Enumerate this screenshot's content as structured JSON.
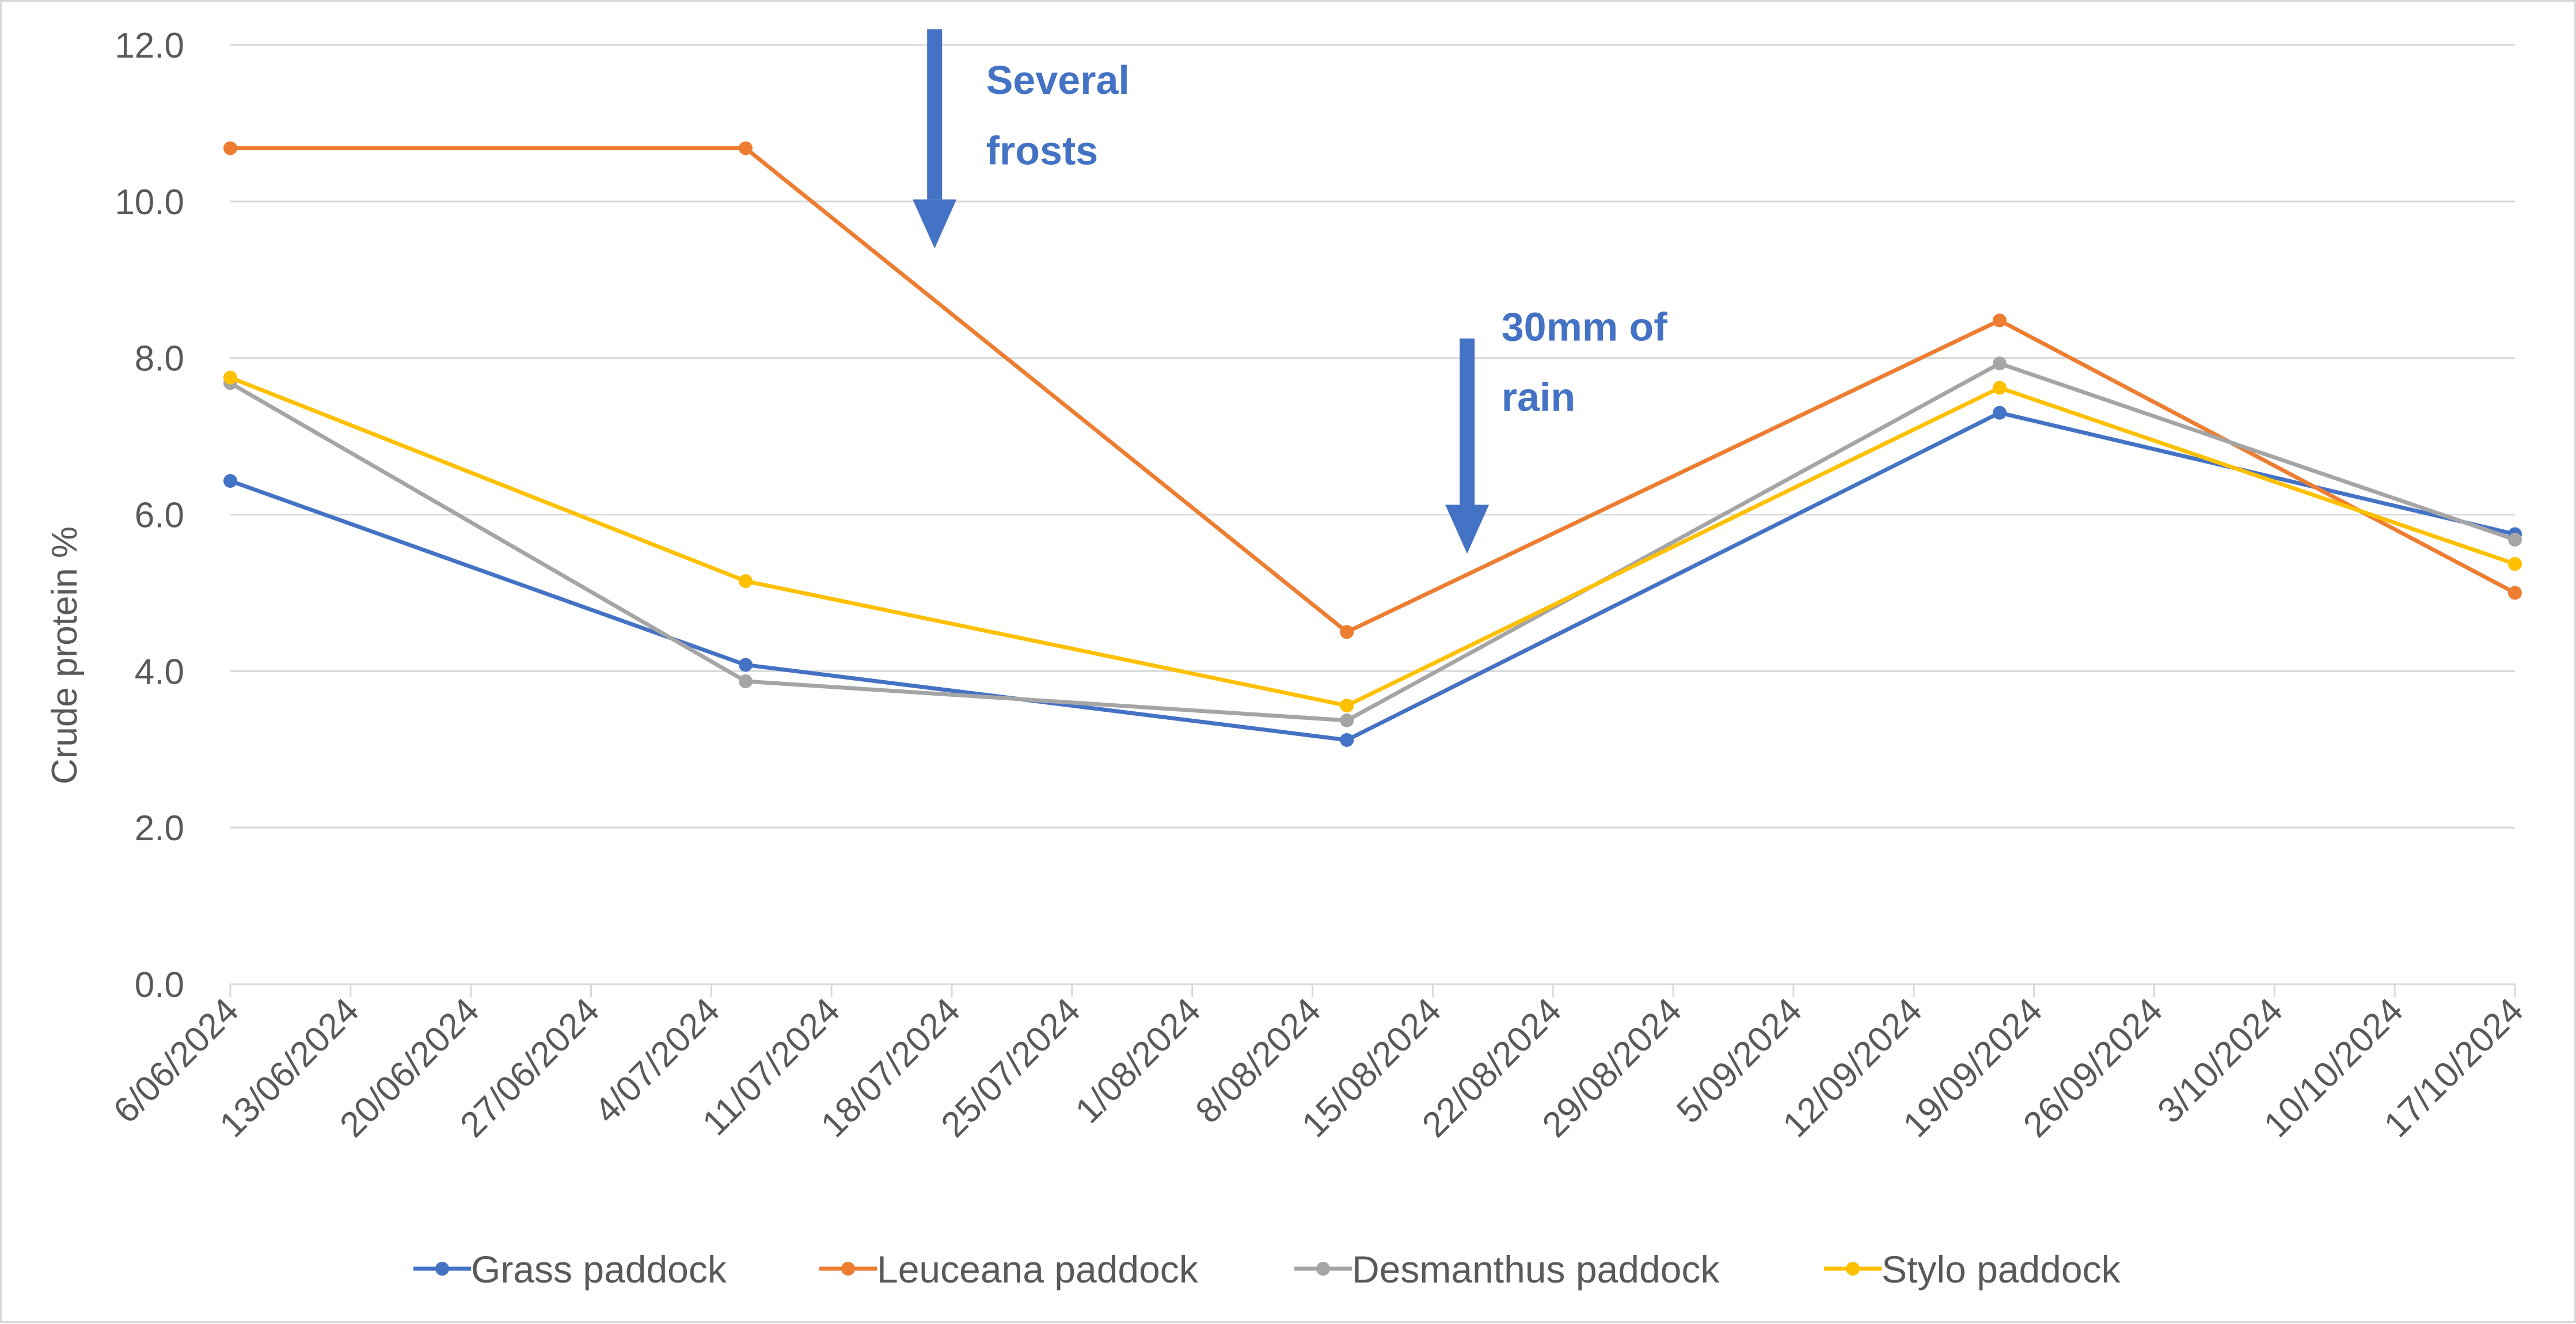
{
  "chart_data": {
    "type": "line",
    "title": "",
    "xlabel": "",
    "ylabel": "Crude protein %",
    "ylim": [
      0,
      12
    ],
    "yticks": [
      "0.0",
      "2.0",
      "4.0",
      "6.0",
      "8.0",
      "10.0",
      "12.0"
    ],
    "xlim": [
      "2024-06-06",
      "2024-10-17"
    ],
    "xticks": [
      "6/06/2024",
      "13/06/2024",
      "20/06/2024",
      "27/06/2024",
      "4/07/2024",
      "11/07/2024",
      "18/07/2024",
      "25/07/2024",
      "1/08/2024",
      "8/08/2024",
      "15/08/2024",
      "22/08/2024",
      "29/08/2024",
      "5/09/2024",
      "12/09/2024",
      "19/09/2024",
      "26/09/2024",
      "3/10/2024",
      "10/10/2024",
      "17/10/2024"
    ],
    "grid": true,
    "legend_position": "bottom",
    "x": [
      "2024-06-06",
      "2024-07-06",
      "2024-08-10",
      "2024-09-17",
      "2024-10-17"
    ],
    "series": [
      {
        "name": "Grass paddock",
        "color": "#4472C4",
        "values": [
          6.43,
          4.08,
          3.12,
          7.3,
          5.75
        ]
      },
      {
        "name": "Leuceana paddock",
        "color": "#ED7D31",
        "values": [
          10.68,
          10.68,
          4.5,
          8.48,
          5.0
        ]
      },
      {
        "name": "Desmanthus paddock",
        "color": "#A5A5A5",
        "values": [
          7.68,
          3.87,
          3.37,
          7.93,
          5.68
        ]
      },
      {
        "name": "Stylo paddock",
        "color": "#FFC000",
        "values": [
          7.75,
          5.15,
          3.56,
          7.62,
          5.37
        ]
      }
    ],
    "annotations": [
      {
        "id": "frost",
        "lines": [
          "Several",
          "frosts"
        ],
        "color": "#4472C4",
        "arrow_date": "2024-07-17",
        "arrow_from": 12.2,
        "arrow_to": 9.4,
        "text_date": "2024-07-20",
        "text_y": [
          11.55,
          10.65
        ]
      },
      {
        "id": "rain",
        "lines": [
          "30mm of",
          "rain"
        ],
        "color": "#4472C4",
        "arrow_date": "2024-08-17",
        "arrow_from": 8.25,
        "arrow_to": 5.5,
        "text_date": "2024-08-19",
        "text_y": [
          8.4,
          7.5
        ]
      }
    ]
  }
}
